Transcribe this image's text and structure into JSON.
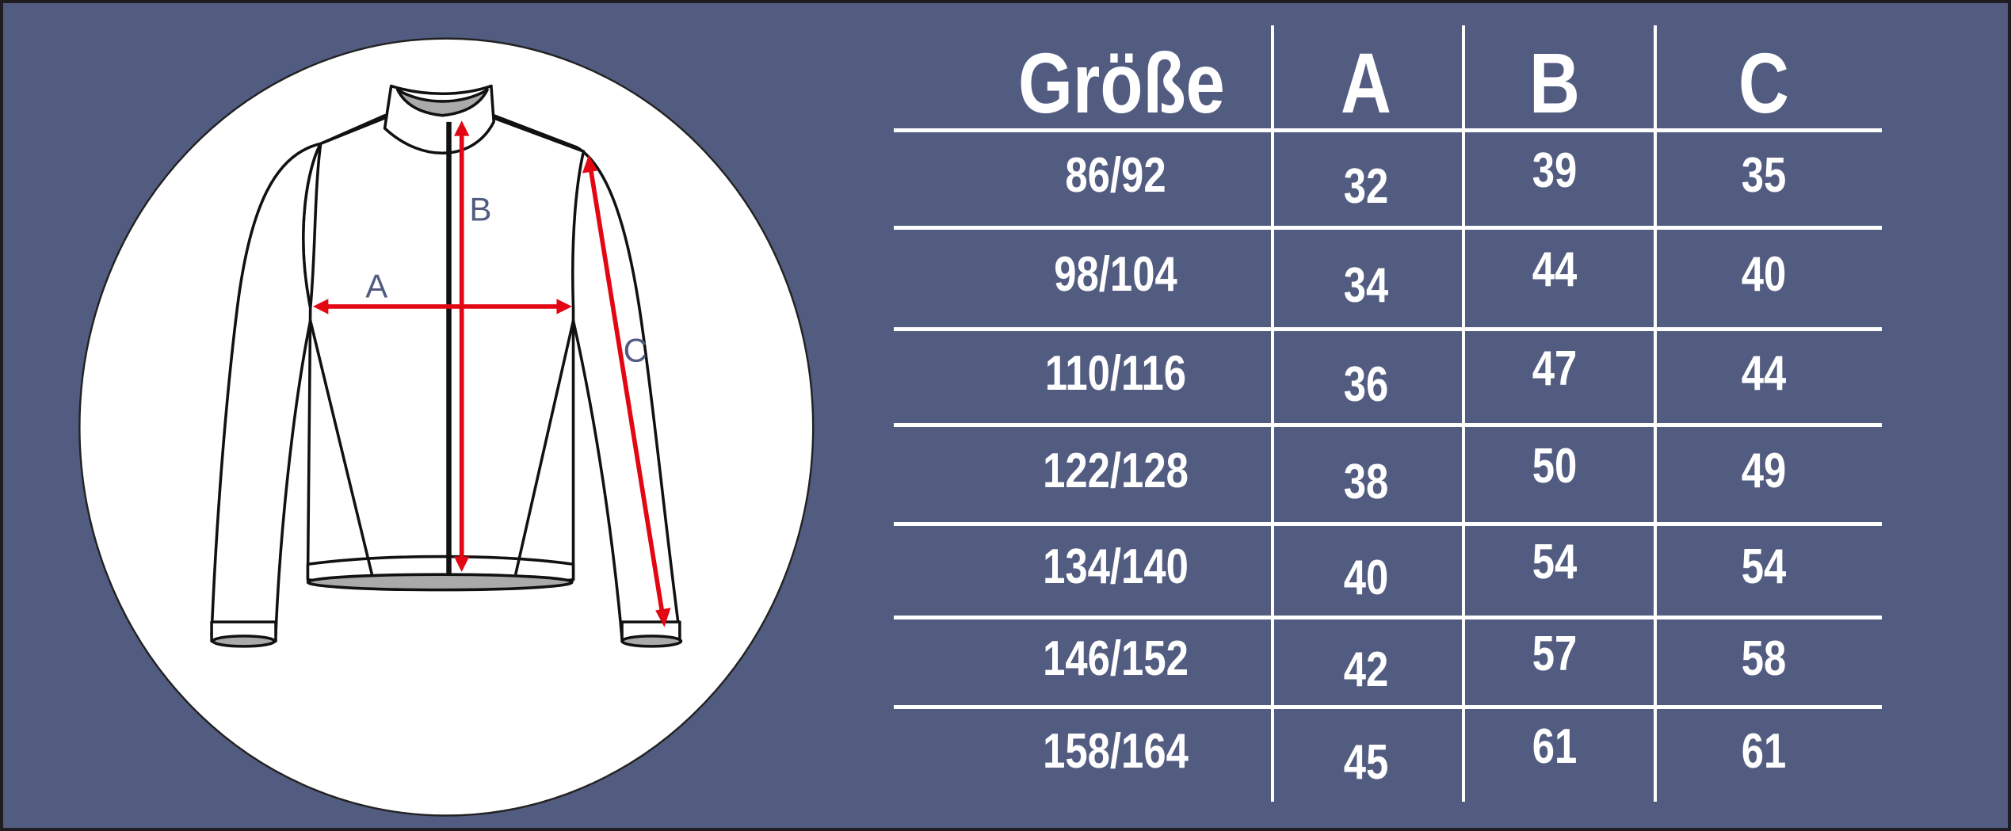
{
  "colors": {
    "background": "#525c80",
    "circle": "#ffffff",
    "arrow": "#e30613",
    "label": "#525c80",
    "text": "#ffffff"
  },
  "diagram": {
    "labels": {
      "a": "A",
      "b": "B",
      "c": "C"
    }
  },
  "table": {
    "headers": [
      "Größe",
      "A",
      "B",
      "C"
    ],
    "rows": [
      [
        "86/92",
        "32",
        "39",
        "35"
      ],
      [
        "98/104",
        "34",
        "44",
        "40"
      ],
      [
        "110/116",
        "36",
        "47",
        "44"
      ],
      [
        "122/128",
        "38",
        "50",
        "49"
      ],
      [
        "134/140",
        "40",
        "54",
        "54"
      ],
      [
        "146/152",
        "42",
        "57",
        "58"
      ],
      [
        "158/164",
        "45",
        "61",
        "61"
      ]
    ]
  }
}
